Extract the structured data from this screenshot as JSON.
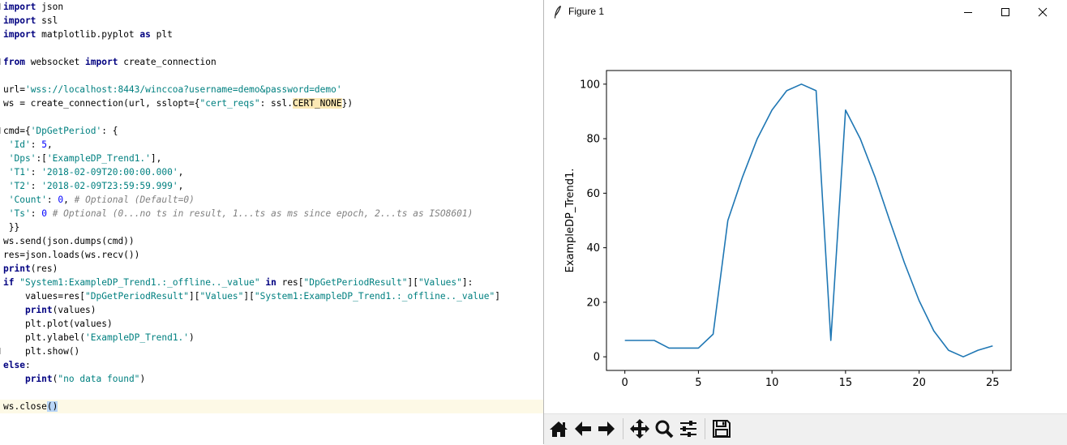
{
  "editor": {
    "lines": [
      "import json",
      "import ssl",
      "import matplotlib.pyplot as plt",
      "",
      "from websocket import create_connection",
      "",
      "url='wss://localhost:8443/winccoa?username=demo&password=demo'",
      "ws = create_connection(url, sslopt={\"cert_reqs\": ssl.CERT_NONE})",
      "",
      "cmd={'DpGetPeriod': {",
      " 'Id': 5,",
      " 'Dps':['ExampleDP_Trend1.'],",
      " 'T1': '2018-02-09T20:00:00.000',",
      " 'T2': '2018-02-09T23:59:59.999',",
      " 'Count': 0, # Optional (Default=0)",
      " 'Ts': 0 # Optional (0...no ts in result, 1...ts as ms since epoch, 2...ts as ISO8601)",
      " }}",
      "ws.send(json.dumps(cmd))",
      "res=json.loads(ws.recv())",
      "print(res)",
      "if \"System1:ExampleDP_Trend1.:_offline.._value\" in res[\"DpGetPeriodResult\"][\"Values\"]:",
      "    values=res[\"DpGetPeriodResult\"][\"Values\"][\"System1:ExampleDP_Trend1.:_offline.._value\"]",
      "    print(values)",
      "    plt.plot(values)",
      "    plt.ylabel('ExampleDP_Trend1.')",
      "    plt.show()",
      "else:",
      "    print(\"no data found\")",
      "",
      "ws.close()"
    ],
    "current_line": 29
  },
  "figure_window": {
    "title": "Figure 1",
    "title_icon": "feather-icon",
    "buttons": [
      "minimize-icon",
      "maximize-icon",
      "close-icon"
    ]
  },
  "toolbar": {
    "buttons": [
      "home-icon",
      "back-arrow-icon",
      "forward-arrow-icon",
      "pan-icon",
      "zoom-icon",
      "configure-subplots-icon",
      "save-icon"
    ]
  },
  "chart_data": {
    "type": "line",
    "title": "",
    "xlabel": "",
    "ylabel": "ExampleDP_Trend1.",
    "x": [
      0,
      1,
      2,
      3,
      4,
      5,
      6,
      7,
      8,
      9,
      10,
      11,
      12,
      13,
      14,
      15,
      16,
      17,
      18,
      19,
      20,
      21,
      22,
      23,
      24,
      25
    ],
    "series": [
      {
        "color": "#1f77b4",
        "values": [
          6,
          6,
          6,
          3.2,
          3.2,
          3.2,
          8.3,
          50,
          66,
          80,
          90.5,
          97.6,
          100,
          97.6,
          6,
          90.5,
          80,
          66,
          50,
          34.5,
          20.6,
          9.5,
          2.4,
          0,
          2.4,
          4
        ]
      }
    ],
    "xlim": [
      -1.25,
      26.25
    ],
    "ylim": [
      -5,
      105
    ],
    "xticks": [
      0,
      5,
      10,
      15,
      20,
      25
    ],
    "yticks": [
      0,
      20,
      40,
      60,
      80,
      100
    ],
    "grid": false,
    "legend": "none"
  }
}
